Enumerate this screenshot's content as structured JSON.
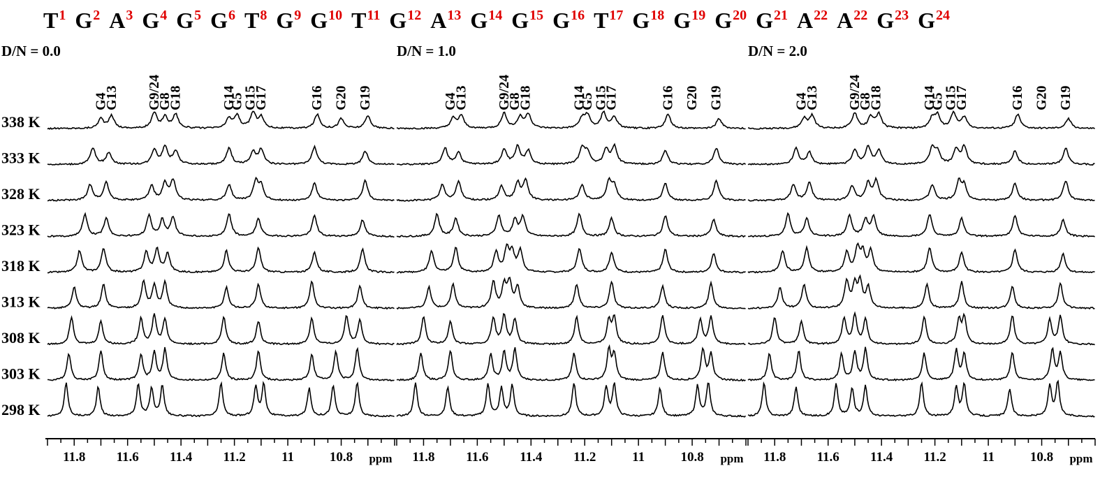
{
  "sequence": [
    {
      "base": "T",
      "num": "1"
    },
    {
      "base": "G",
      "num": "2"
    },
    {
      "base": "A",
      "num": "3"
    },
    {
      "base": "G",
      "num": "4"
    },
    {
      "base": "G",
      "num": "5"
    },
    {
      "base": "G",
      "num": "6"
    },
    {
      "base": "T",
      "num": "8"
    },
    {
      "base": "G",
      "num": "9"
    },
    {
      "base": "G",
      "num": "10"
    },
    {
      "base": "T",
      "num": "11"
    },
    {
      "base": "G",
      "num": "12"
    },
    {
      "base": "A",
      "num": "13"
    },
    {
      "base": "G",
      "num": "14"
    },
    {
      "base": "G",
      "num": "15"
    },
    {
      "base": "G",
      "num": "16"
    },
    {
      "base": "T",
      "num": "17"
    },
    {
      "base": "G",
      "num": "18"
    },
    {
      "base": "G",
      "num": "19"
    },
    {
      "base": "G",
      "num": "20"
    },
    {
      "base": "G",
      "num": "21"
    },
    {
      "base": "A",
      "num": "22"
    },
    {
      "base": "A",
      "num": "22"
    },
    {
      "base": "G",
      "num": "23"
    },
    {
      "base": "G",
      "num": "24"
    }
  ],
  "chart_data": {
    "type": "line",
    "x_unit": "ppm",
    "xlim": [
      11.9,
      10.6
    ],
    "x_reversed": true,
    "xticks": [
      11.8,
      11.6,
      11.4,
      11.2,
      11.0,
      10.8
    ],
    "temperatures": [
      "338 K",
      "333 K",
      "328 K",
      "323 K",
      "318 K",
      "313 K",
      "308 K",
      "303 K",
      "298 K"
    ],
    "panels": [
      {
        "title": "D/N = 0.0",
        "peak_labels": [
          {
            "label": "G4",
            "ppm": 11.7
          },
          {
            "label": "G13",
            "ppm": 11.66
          },
          {
            "label": "G9/24",
            "ppm": 11.5
          },
          {
            "label": "G8",
            "ppm": 11.46
          },
          {
            "label": "G18",
            "ppm": 11.42
          },
          {
            "label": "G14",
            "ppm": 11.22
          },
          {
            "label": "G5",
            "ppm": 11.19
          },
          {
            "label": "G15",
            "ppm": 11.14
          },
          {
            "label": "G17",
            "ppm": 11.1
          },
          {
            "label": "G16",
            "ppm": 10.89
          },
          {
            "label": "G20",
            "ppm": 10.8
          },
          {
            "label": "G19",
            "ppm": 10.71
          }
        ],
        "peaks_by_temperature": [
          [
            11.7,
            11.66,
            11.5,
            11.46,
            11.42,
            11.22,
            11.19,
            11.13,
            11.1,
            10.89,
            10.8,
            10.7
          ],
          [
            11.73,
            11.67,
            11.5,
            11.46,
            11.42,
            11.22,
            11.13,
            11.1,
            10.9,
            10.71
          ],
          [
            11.74,
            11.68,
            11.51,
            11.46,
            11.43,
            11.22,
            11.12,
            11.1,
            10.9,
            10.71
          ],
          [
            11.76,
            11.68,
            11.52,
            11.47,
            11.43,
            11.22,
            11.11,
            10.9,
            10.72
          ],
          [
            11.78,
            11.69,
            11.53,
            11.49,
            11.45,
            11.23,
            11.11,
            10.9,
            10.72
          ],
          [
            11.8,
            11.69,
            11.54,
            11.5,
            11.46,
            11.23,
            11.11,
            10.91,
            10.73
          ],
          [
            11.81,
            11.7,
            11.55,
            11.5,
            11.46,
            11.24,
            11.11,
            10.91,
            10.78,
            10.73
          ],
          [
            11.82,
            11.7,
            11.55,
            11.5,
            11.46,
            11.24,
            11.11,
            10.91,
            10.82,
            10.74
          ],
          [
            11.83,
            11.71,
            11.56,
            11.51,
            11.47,
            11.25,
            11.12,
            11.09,
            10.92,
            10.83,
            10.74
          ]
        ]
      },
      {
        "title": "D/N = 1.0",
        "peak_labels": [
          {
            "label": "G4",
            "ppm": 11.7
          },
          {
            "label": "G13",
            "ppm": 11.66
          },
          {
            "label": "G9/24",
            "ppm": 11.5
          },
          {
            "label": "G8",
            "ppm": 11.46
          },
          {
            "label": "G18",
            "ppm": 11.42
          },
          {
            "label": "G14",
            "ppm": 11.22
          },
          {
            "label": "G5",
            "ppm": 11.19
          },
          {
            "label": "G15",
            "ppm": 11.14
          },
          {
            "label": "G17",
            "ppm": 11.1
          },
          {
            "label": "G16",
            "ppm": 10.89
          },
          {
            "label": "G20",
            "ppm": 10.8
          },
          {
            "label": "G19",
            "ppm": 10.71
          }
        ],
        "peaks_by_temperature": [
          [
            11.69,
            11.66,
            11.5,
            11.44,
            11.41,
            11.21,
            11.19,
            11.13,
            11.09,
            10.89,
            10.7
          ],
          [
            11.72,
            11.67,
            11.5,
            11.45,
            11.41,
            11.21,
            11.19,
            11.12,
            11.09,
            10.9,
            10.71
          ],
          [
            11.73,
            11.67,
            11.51,
            11.45,
            11.42,
            11.21,
            11.11,
            11.09,
            10.9,
            10.71
          ],
          [
            11.75,
            11.68,
            11.52,
            11.46,
            11.43,
            11.22,
            11.1,
            10.9,
            10.72
          ],
          [
            11.77,
            11.68,
            11.53,
            11.49,
            11.47,
            11.44,
            11.22,
            11.1,
            10.9,
            10.72
          ],
          [
            11.78,
            11.69,
            11.54,
            11.5,
            11.48,
            11.45,
            11.23,
            11.1,
            10.91,
            10.73
          ],
          [
            11.8,
            11.7,
            11.54,
            11.5,
            11.46,
            11.23,
            11.11,
            11.09,
            10.91,
            10.77,
            10.73
          ],
          [
            11.81,
            11.7,
            11.55,
            11.5,
            11.46,
            11.24,
            11.11,
            11.09,
            10.91,
            10.76,
            10.73
          ],
          [
            11.83,
            11.71,
            11.56,
            11.51,
            11.47,
            11.24,
            11.12,
            11.09,
            10.92,
            10.78,
            10.74
          ]
        ]
      },
      {
        "title": "D/N = 2.0",
        "peak_labels": [
          {
            "label": "G4",
            "ppm": 11.7
          },
          {
            "label": "G13",
            "ppm": 11.66
          },
          {
            "label": "G9/24",
            "ppm": 11.5
          },
          {
            "label": "G8",
            "ppm": 11.46
          },
          {
            "label": "G18",
            "ppm": 11.42
          },
          {
            "label": "G14",
            "ppm": 11.22
          },
          {
            "label": "G5",
            "ppm": 11.19
          },
          {
            "label": "G15",
            "ppm": 11.14
          },
          {
            "label": "G17",
            "ppm": 11.1
          },
          {
            "label": "G16",
            "ppm": 10.89
          },
          {
            "label": "G20",
            "ppm": 10.8
          },
          {
            "label": "G19",
            "ppm": 10.71
          }
        ],
        "peaks_by_temperature": [
          [
            11.69,
            11.66,
            11.5,
            11.44,
            11.41,
            11.21,
            11.19,
            11.13,
            11.09,
            10.89,
            10.7
          ],
          [
            11.72,
            11.67,
            11.5,
            11.45,
            11.41,
            11.21,
            11.19,
            11.12,
            11.09,
            10.9,
            10.71
          ],
          [
            11.73,
            11.67,
            11.51,
            11.45,
            11.42,
            11.21,
            11.11,
            11.09,
            10.9,
            10.71
          ],
          [
            11.75,
            11.68,
            11.52,
            11.46,
            11.43,
            11.22,
            11.1,
            10.9,
            10.72
          ],
          [
            11.77,
            11.68,
            11.53,
            11.49,
            11.47,
            11.44,
            11.22,
            11.1,
            10.9,
            10.72
          ],
          [
            11.78,
            11.69,
            11.53,
            11.5,
            11.48,
            11.45,
            11.23,
            11.1,
            10.91,
            10.73
          ],
          [
            11.8,
            11.7,
            11.54,
            11.5,
            11.46,
            11.24,
            11.11,
            11.09,
            10.91,
            10.77,
            10.73
          ],
          [
            11.82,
            11.71,
            11.55,
            11.5,
            11.46,
            11.24,
            11.12,
            11.09,
            10.91,
            10.76,
            10.73
          ],
          [
            11.84,
            11.72,
            11.57,
            11.51,
            11.46,
            11.25,
            11.12,
            11.09,
            10.92,
            10.77,
            10.74
          ]
        ]
      }
    ]
  },
  "colors": {
    "trace": "#000000",
    "sequence_number": "#e00000"
  }
}
